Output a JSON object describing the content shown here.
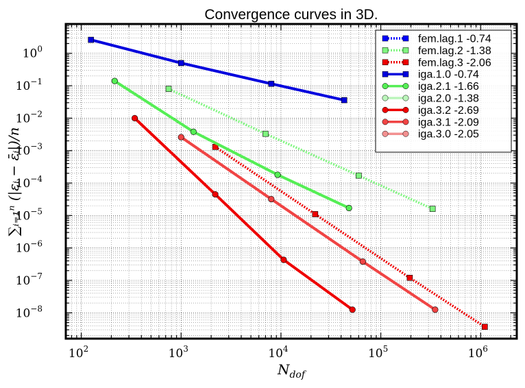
{
  "chart_data": {
    "type": "line",
    "title": "Convergence curves in 3D.",
    "xlabel": "N_dof",
    "ylabel": "∑ᵢ₌₁ⁿ (|εᵢ − ε̄ᵢ|)/n",
    "xscale": "log",
    "yscale": "log",
    "xlim": [
      70,
      2300000
    ],
    "ylim": [
      1.6e-09,
      8
    ],
    "grid": true,
    "legend_position": "top-right",
    "x_ticks": [
      {
        "value": 100,
        "base": "10",
        "exp": "2"
      },
      {
        "value": 1000,
        "base": "10",
        "exp": "3"
      },
      {
        "value": 10000,
        "base": "10",
        "exp": "4"
      },
      {
        "value": 100000,
        "base": "10",
        "exp": "5"
      },
      {
        "value": 1000000,
        "base": "10",
        "exp": "6"
      }
    ],
    "y_ticks": [
      {
        "value": 1,
        "base": "10",
        "exp": "0"
      },
      {
        "value": 0.1,
        "base": "10",
        "exp": "−1"
      },
      {
        "value": 0.01,
        "base": "10",
        "exp": "−2"
      },
      {
        "value": 0.001,
        "base": "10",
        "exp": "−3"
      },
      {
        "value": 0.0001,
        "base": "10",
        "exp": "−4"
      },
      {
        "value": 1e-05,
        "base": "10",
        "exp": "−5"
      },
      {
        "value": 1e-06,
        "base": "10",
        "exp": "−6"
      },
      {
        "value": 1e-07,
        "base": "10",
        "exp": "−7"
      },
      {
        "value": 1e-08,
        "base": "10",
        "exp": "−8"
      }
    ],
    "series": [
      {
        "name": "fem.lag.1 -0.74",
        "color": "#0000ff",
        "style": "dotted",
        "marker": "square",
        "x": [],
        "y": [],
        "show_line": false
      },
      {
        "name": "fem.lag.2 -1.38",
        "color": "#7ff57f",
        "style": "dotted",
        "marker": "square",
        "x": [
          750,
          7000,
          60000,
          330000
        ],
        "y": [
          0.08,
          0.0033,
          0.00017,
          1.6e-05
        ]
      },
      {
        "name": "fem.lag.3 -2.06",
        "color": "#ee0000",
        "style": "dotted",
        "marker": "square",
        "x": [
          2200,
          22000,
          195000,
          1100000
        ],
        "y": [
          0.0013,
          1.1e-05,
          1.2e-07,
          3.7e-09
        ]
      },
      {
        "name": "iga.1.0 -0.74",
        "color": "#0000dd",
        "style": "solid",
        "marker": "square",
        "x": [
          125,
          1000,
          8000,
          43000
        ],
        "y": [
          2.6,
          0.5,
          0.115,
          0.036
        ]
      },
      {
        "name": "iga.2.1 -1.66",
        "color": "#55ee55",
        "style": "solid",
        "marker": "circle",
        "x": [
          216,
          1331,
          9261,
          48000
        ],
        "y": [
          0.14,
          0.0038,
          0.00018,
          1.7e-05
        ]
      },
      {
        "name": "iga.2.0 -1.38",
        "color": "#bbf5bb",
        "style": "solid",
        "marker": "circle",
        "x": [],
        "y": []
      },
      {
        "name": "iga.3.2 -2.69",
        "color": "#ee0000",
        "style": "solid",
        "marker": "circle",
        "x": [
          343,
          2197,
          10648,
          52000
        ],
        "y": [
          0.01,
          4.5e-05,
          4.3e-07,
          1.25e-08
        ]
      },
      {
        "name": "iga.3.1 -2.09",
        "color": "#f04444",
        "style": "solid",
        "marker": "circle",
        "x": [
          1000,
          8000,
          66000,
          350000
        ],
        "y": [
          0.0026,
          3.2e-05,
          3.8e-07,
          1.25e-08
        ]
      },
      {
        "name": "iga.3.0 -2.05",
        "color": "#f29090",
        "style": "solid",
        "marker": "circle",
        "x": [],
        "y": []
      }
    ]
  }
}
